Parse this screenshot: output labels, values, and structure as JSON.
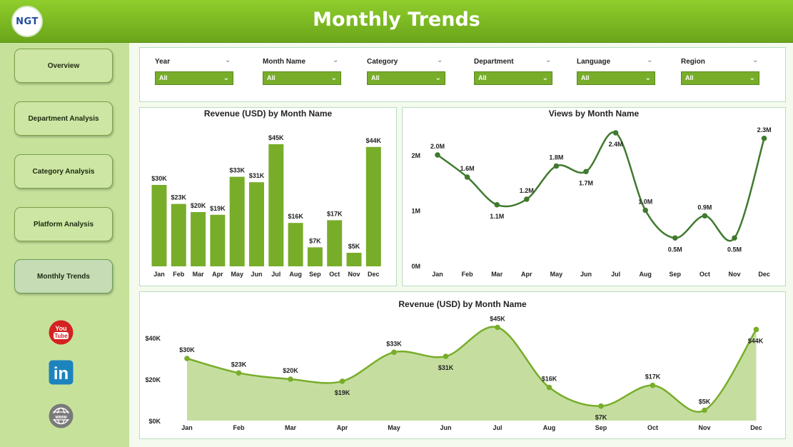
{
  "header": {
    "title": "Monthly Trends",
    "logo_text": "NGT"
  },
  "sidebar": {
    "items": [
      {
        "label": "Overview"
      },
      {
        "label": "Department Analysis"
      },
      {
        "label": "Category Analysis"
      },
      {
        "label": "Platform Analysis"
      },
      {
        "label": "Monthly Trends",
        "active": true
      }
    ],
    "social": [
      "youtube-icon",
      "linkedin-icon",
      "www-icon"
    ],
    "youtube_text_top": "You",
    "youtube_text_bottom": "Tube",
    "linkedin_text": "in",
    "www_text": "www"
  },
  "filters": [
    {
      "label": "Year",
      "value": "All"
    },
    {
      "label": "Month Name",
      "value": "All"
    },
    {
      "label": "Category",
      "value": "All"
    },
    {
      "label": "Department",
      "value": "All"
    },
    {
      "label": "Language",
      "value": "All"
    },
    {
      "label": "Region",
      "value": "All"
    }
  ],
  "colors": {
    "accent": "#78ad2a",
    "line": "#3f7a2e",
    "area": "#c5dea0",
    "sidebar": "#c6e29a"
  },
  "chart_data": [
    {
      "type": "bar",
      "title": "Revenue (USD) by Month Name",
      "categories": [
        "Jan",
        "Feb",
        "Mar",
        "Apr",
        "May",
        "Jun",
        "Jul",
        "Aug",
        "Sep",
        "Oct",
        "Nov",
        "Dec"
      ],
      "values": [
        30,
        23,
        20,
        19,
        33,
        31,
        45,
        16,
        7,
        17,
        5,
        44
      ],
      "labels": [
        "$30K",
        "$23K",
        "$20K",
        "$19K",
        "$33K",
        "$31K",
        "$45K",
        "$16K",
        "$7K",
        "$17K",
        "$5K",
        "$44K"
      ],
      "ylim": [
        0,
        50
      ]
    },
    {
      "type": "line",
      "title": "Views by Month Name",
      "categories": [
        "Jan",
        "Feb",
        "Mar",
        "Apr",
        "May",
        "Jun",
        "Jul",
        "Aug",
        "Sep",
        "Oct",
        "Nov",
        "Dec"
      ],
      "values": [
        2.0,
        1.6,
        1.1,
        1.2,
        1.8,
        1.7,
        2.4,
        1.0,
        0.5,
        0.9,
        0.5,
        2.3
      ],
      "labels": [
        "2.0M",
        "1.6M",
        "1.1M",
        "1.2M",
        "1.8M",
        "1.7M",
        "2.4M",
        "1.0M",
        "0.5M",
        "0.9M",
        "0.5M",
        "2.3M"
      ],
      "yticks": [
        "0M",
        "1M",
        "2M"
      ],
      "ytick_values": [
        0,
        1,
        2
      ],
      "ylim": [
        0,
        2.5
      ]
    },
    {
      "type": "area",
      "title": "Revenue (USD) by Month Name",
      "categories": [
        "Jan",
        "Feb",
        "Mar",
        "Apr",
        "May",
        "Jun",
        "Jul",
        "Aug",
        "Sep",
        "Oct",
        "Nov",
        "Dec"
      ],
      "values": [
        30,
        23,
        20,
        19,
        33,
        31,
        45,
        16,
        7,
        17,
        5,
        44
      ],
      "labels": [
        "$30K",
        "$23K",
        "$20K",
        "$19K",
        "$33K",
        "$31K",
        "$45K",
        "$16K",
        "$7K",
        "$17K",
        "$5K",
        "$44K"
      ],
      "yticks": [
        "$0K",
        "$20K",
        "$40K"
      ],
      "ytick_values": [
        0,
        20,
        40
      ],
      "ylim": [
        0,
        46
      ]
    }
  ]
}
